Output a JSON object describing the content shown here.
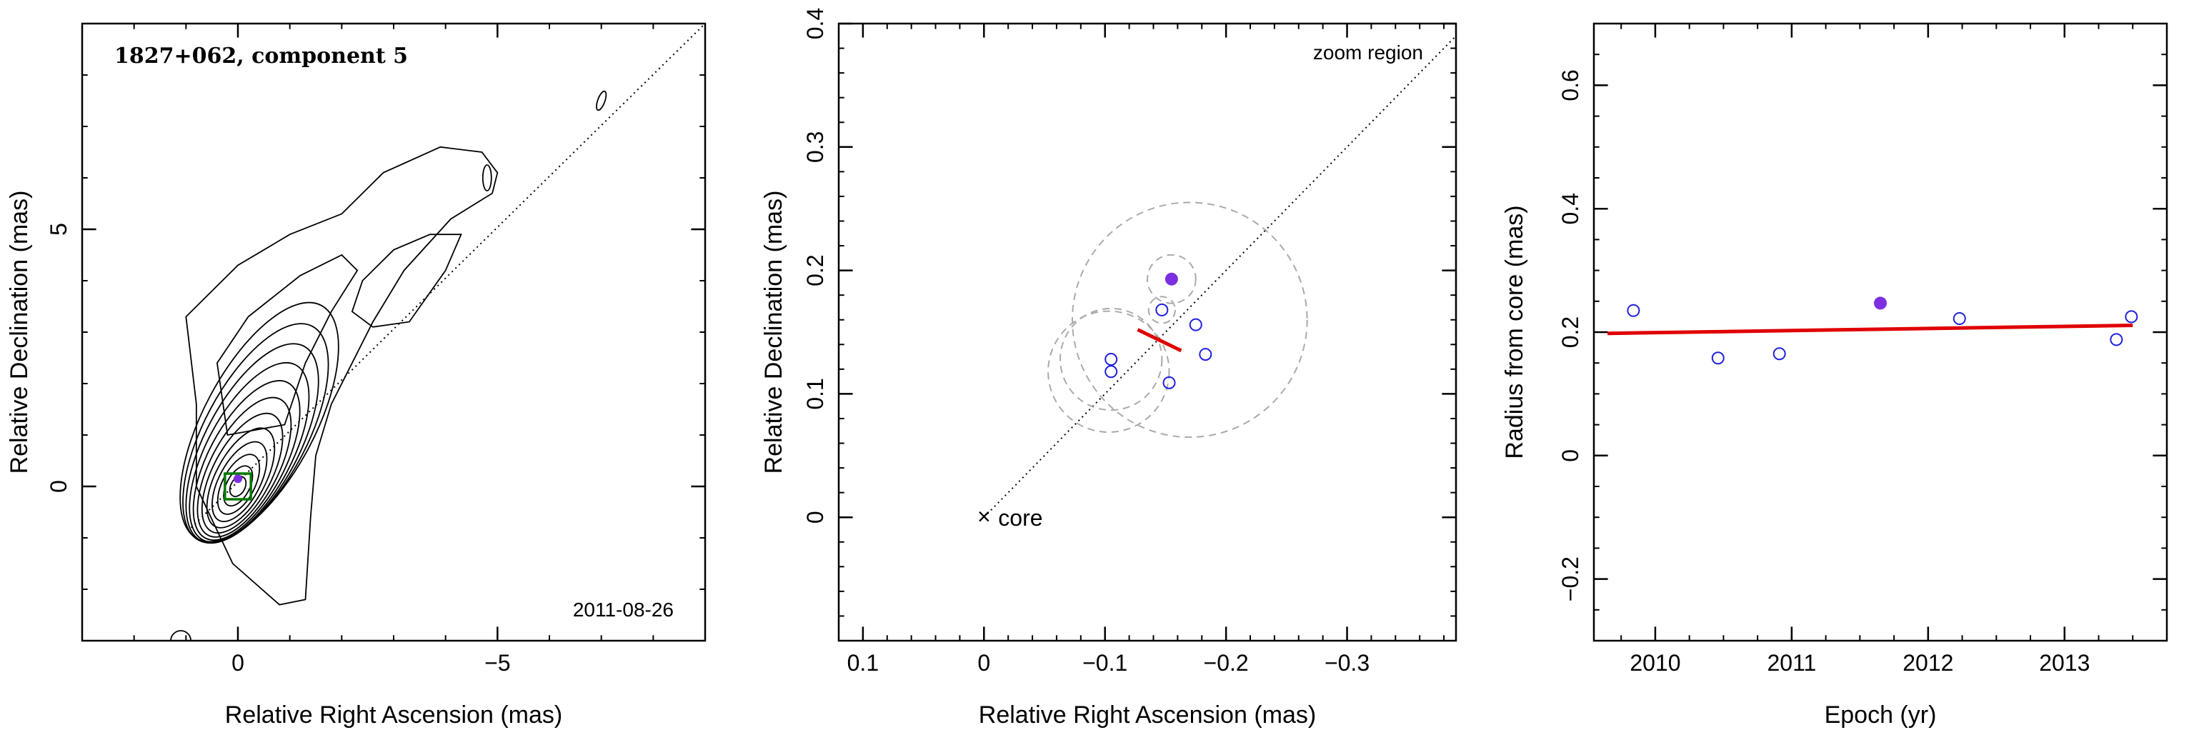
{
  "chart_data": [
    {
      "type": "contour",
      "title": "1827+062, component 5",
      "date_label": "2011-08-26",
      "xlabel": "Relative Right Ascension (mas)",
      "ylabel": "Relative Declination (mas)",
      "xlim": [
        3,
        -9
      ],
      "ylim": [
        -3,
        9
      ],
      "x_ticks": [
        0,
        -5
      ],
      "x_tick_labels": [
        "0",
        "−5"
      ],
      "y_ticks": [
        0,
        5
      ],
      "y_tick_labels": [
        "0",
        "5"
      ],
      "jet_axis_line": [
        [
          0.9,
          -0.8
        ],
        [
          -9,
          9
        ]
      ],
      "contour_center": [
        0,
        0
      ],
      "contour_levels": 12,
      "component_box": {
        "x": 0,
        "y": 0,
        "half_size": 0.25,
        "color": "#007a00"
      },
      "component_marker": {
        "x": 0,
        "y": 0.15,
        "color": "#7b2fe0"
      },
      "colors": {
        "contours": "#000000",
        "axis_line": "#000000",
        "box": "#007a00",
        "marker": "#7b2fe0"
      }
    },
    {
      "type": "scatter",
      "annotation_top": "zoom region",
      "core_label": "core",
      "core_marker": "×",
      "xlabel": "Relative Right Ascension (mas)",
      "ylabel": "Relative Declination (mas)",
      "xlim": [
        0.12,
        -0.39
      ],
      "ylim": [
        -0.1,
        0.4
      ],
      "x_ticks": [
        0.1,
        0,
        -0.1,
        -0.2,
        -0.3
      ],
      "x_tick_labels": [
        "0.1",
        "0",
        "−0.1",
        "−0.2",
        "−0.3"
      ],
      "y_ticks": [
        0,
        0.1,
        0.2,
        0.3,
        0.4
      ],
      "y_tick_labels": [
        "0",
        "0.1",
        "0.2",
        "0.3",
        "0.4"
      ],
      "points": [
        {
          "x": -0.105,
          "y": 0.128,
          "filled": false
        },
        {
          "x": -0.105,
          "y": 0.118,
          "filled": false
        },
        {
          "x": -0.147,
          "y": 0.168,
          "filled": false
        },
        {
          "x": -0.153,
          "y": 0.109,
          "filled": false
        },
        {
          "x": -0.175,
          "y": 0.156,
          "filled": false
        },
        {
          "x": -0.183,
          "y": 0.132,
          "filled": false
        },
        {
          "x": -0.155,
          "y": 0.193,
          "filled": true
        }
      ],
      "uncertainty_circles": [
        {
          "cx": -0.105,
          "cy": 0.128,
          "r": 0.042
        },
        {
          "cx": -0.103,
          "cy": 0.118,
          "r": 0.05
        },
        {
          "cx": -0.147,
          "cy": 0.168,
          "r": 0.011
        },
        {
          "cx": -0.155,
          "cy": 0.193,
          "r": 0.02
        },
        {
          "cx": -0.17,
          "cy": 0.16,
          "r": 0.097
        }
      ],
      "fit_segment": [
        [
          -0.127,
          0.152
        ],
        [
          -0.163,
          0.135
        ]
      ],
      "axis_line": [
        [
          0,
          0
        ],
        [
          -0.39,
          0.39
        ]
      ],
      "colors": {
        "open": "#2020e0",
        "filled": "#7b2fe0",
        "fit": "#e00000",
        "circles": "#aaaaaa",
        "axis_line": "#000000"
      }
    },
    {
      "type": "scatter",
      "xlabel": "Epoch (yr)",
      "ylabel": "Radius from core (mas)",
      "xlim": [
        2009.55,
        2013.75
      ],
      "ylim": [
        -0.3,
        0.7
      ],
      "x_ticks": [
        2010,
        2011,
        2012,
        2013
      ],
      "x_tick_labels": [
        "2010",
        "2011",
        "2012",
        "2013"
      ],
      "y_ticks": [
        -0.2,
        0,
        0.2,
        0.4,
        0.6
      ],
      "y_tick_labels": [
        "−0.2",
        "0",
        "0.2",
        "0.4",
        "0.6"
      ],
      "points": [
        {
          "x": 2009.84,
          "y": 0.235,
          "filled": false
        },
        {
          "x": 2010.46,
          "y": 0.158,
          "filled": false
        },
        {
          "x": 2010.91,
          "y": 0.165,
          "filled": false
        },
        {
          "x": 2011.65,
          "y": 0.247,
          "filled": true
        },
        {
          "x": 2012.23,
          "y": 0.222,
          "filled": false
        },
        {
          "x": 2013.38,
          "y": 0.188,
          "filled": false
        },
        {
          "x": 2013.49,
          "y": 0.225,
          "filled": false
        }
      ],
      "fit_line": {
        "x": [
          2009.65,
          2013.5
        ],
        "y": [
          0.198,
          0.211
        ]
      },
      "colors": {
        "open": "#2020e0",
        "filled": "#7b2fe0",
        "fit": "#e00000"
      }
    }
  ]
}
